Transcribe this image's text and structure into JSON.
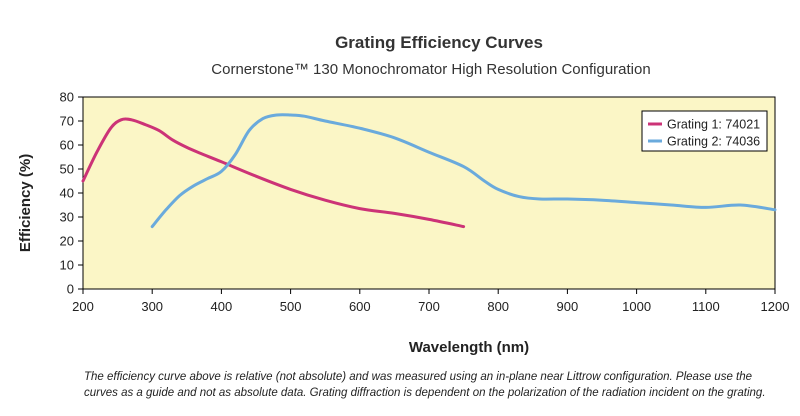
{
  "chart_data": {
    "type": "line",
    "title": "Grating Efficiency Curves",
    "subtitle": "Cornerstone™ 130 Monochromator High Resolution Configuration",
    "xlabel": "Wavelength (nm)",
    "ylabel": "Efficiency (%)",
    "xlim": [
      200,
      1200
    ],
    "ylim": [
      0,
      80
    ],
    "xticks": [
      200,
      300,
      400,
      500,
      600,
      700,
      800,
      900,
      1000,
      1100,
      1200
    ],
    "yticks": [
      0,
      10,
      20,
      30,
      40,
      50,
      60,
      70,
      80
    ],
    "grid": false,
    "background": "#fbf6c6",
    "legend": "top-right",
    "series": [
      {
        "name": "Grating 1: 74021",
        "color": "#cc3377",
        "x": [
          200,
          220,
          240,
          255,
          270,
          290,
          310,
          330,
          350,
          370,
          400,
          450,
          500,
          550,
          600,
          650,
          700,
          750
        ],
        "y": [
          45,
          57,
          67,
          70.5,
          70.5,
          68.5,
          66,
          62,
          59,
          56.5,
          53,
          47,
          41.5,
          37,
          33.5,
          31.5,
          29,
          26
        ]
      },
      {
        "name": "Grating 2: 74036",
        "color": "#6aaadc",
        "x": [
          300,
          320,
          340,
          360,
          380,
          400,
          420,
          440,
          460,
          480,
          500,
          520,
          550,
          600,
          650,
          700,
          750,
          780,
          800,
          830,
          860,
          900,
          950,
          1000,
          1050,
          1100,
          1150,
          1200
        ],
        "y": [
          26,
          33,
          39,
          43,
          46,
          49,
          56,
          66,
          71,
          72.5,
          72.5,
          72,
          70,
          67,
          63,
          57,
          51,
          45,
          41.5,
          38.5,
          37.5,
          37.5,
          37,
          36,
          35,
          34,
          35,
          33
        ]
      }
    ],
    "footnote": [
      "The efficiency curve above is relative (not absolute) and was measured using an in-plane near Littrow configuration.  Please use the",
      "curves as a guide and not as absolute data.  Grating diffraction is dependent on the polarization of the radiation incident on the grating."
    ]
  }
}
